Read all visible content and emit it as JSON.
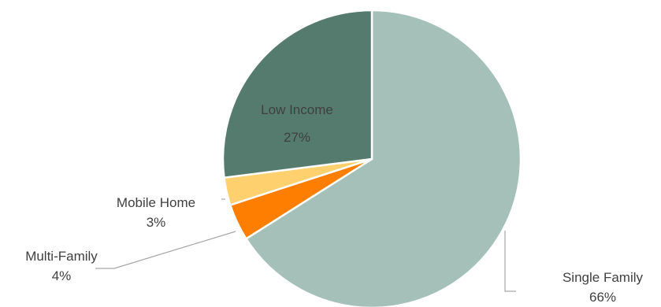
{
  "chart_data": {
    "type": "pie",
    "title": "",
    "legend": "none",
    "start_angle_deg": 0,
    "direction": "clockwise",
    "slices": [
      {
        "label": "Single Family",
        "value": 66,
        "value_label": "66%",
        "color": "#a5c0b8",
        "label_position": "outside"
      },
      {
        "label": "Multi-Family",
        "value": 4,
        "value_label": "4%",
        "color": "#fd7e00",
        "label_position": "outside"
      },
      {
        "label": "Mobile Home",
        "value": 3,
        "value_label": "3%",
        "color": "#fed16e",
        "label_position": "outside"
      },
      {
        "label": "Low Income",
        "value": 27,
        "value_label": "27%",
        "color": "#557b6e",
        "label_position": "inside"
      }
    ]
  }
}
